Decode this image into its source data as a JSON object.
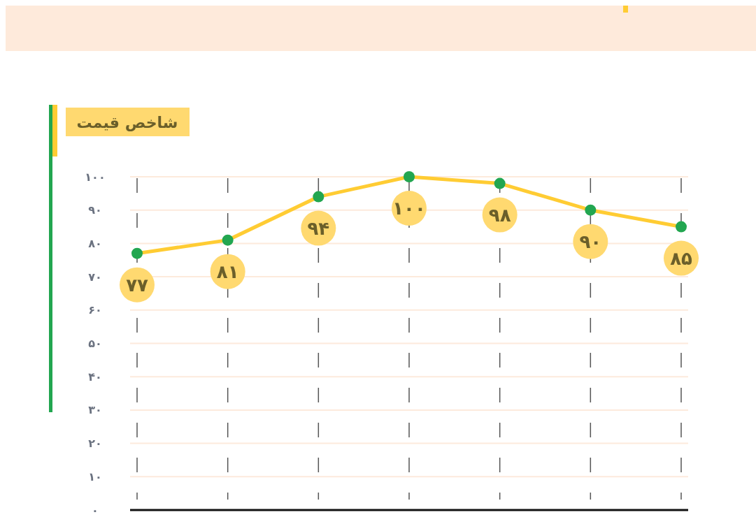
{
  "chart_data": {
    "type": "line",
    "title": "شاخص قیمت",
    "categories": [
      null,
      null,
      null,
      null,
      null,
      null,
      null
    ],
    "series": [
      {
        "color": "#ffcc33",
        "values": [
          77,
          81,
          94,
          100,
          98,
          90,
          85
        ],
        "value_labels": [
          "۷۷",
          "۸۱",
          "۹۴",
          "۱۰۰",
          "۹۸",
          "۹۰",
          "۸۵"
        ]
      },
      {
        "type": "scatter",
        "color": "#22a650",
        "marker": "circle",
        "values": [
          77,
          81,
          94,
          100,
          98,
          90,
          85
        ]
      }
    ],
    "ylim": [
      0,
      100
    ],
    "yticks": [
      {
        "value": 0,
        "label": "۰"
      },
      {
        "value": 10,
        "label": "۱۰"
      },
      {
        "value": 20,
        "label": "۲۰"
      },
      {
        "value": 30,
        "label": "۳۰"
      },
      {
        "value": 40,
        "label": "۴۰"
      },
      {
        "value": 50,
        "label": "۵۰"
      },
      {
        "value": 60,
        "label": "۶۰"
      },
      {
        "value": 70,
        "label": "۷۰"
      },
      {
        "value": 80,
        "label": "۸۰"
      },
      {
        "value": 90,
        "label": "۹۰"
      },
      {
        "value": 100,
        "label": "۱۰۰"
      }
    ],
    "grid": true,
    "line_style": "solid"
  }
}
